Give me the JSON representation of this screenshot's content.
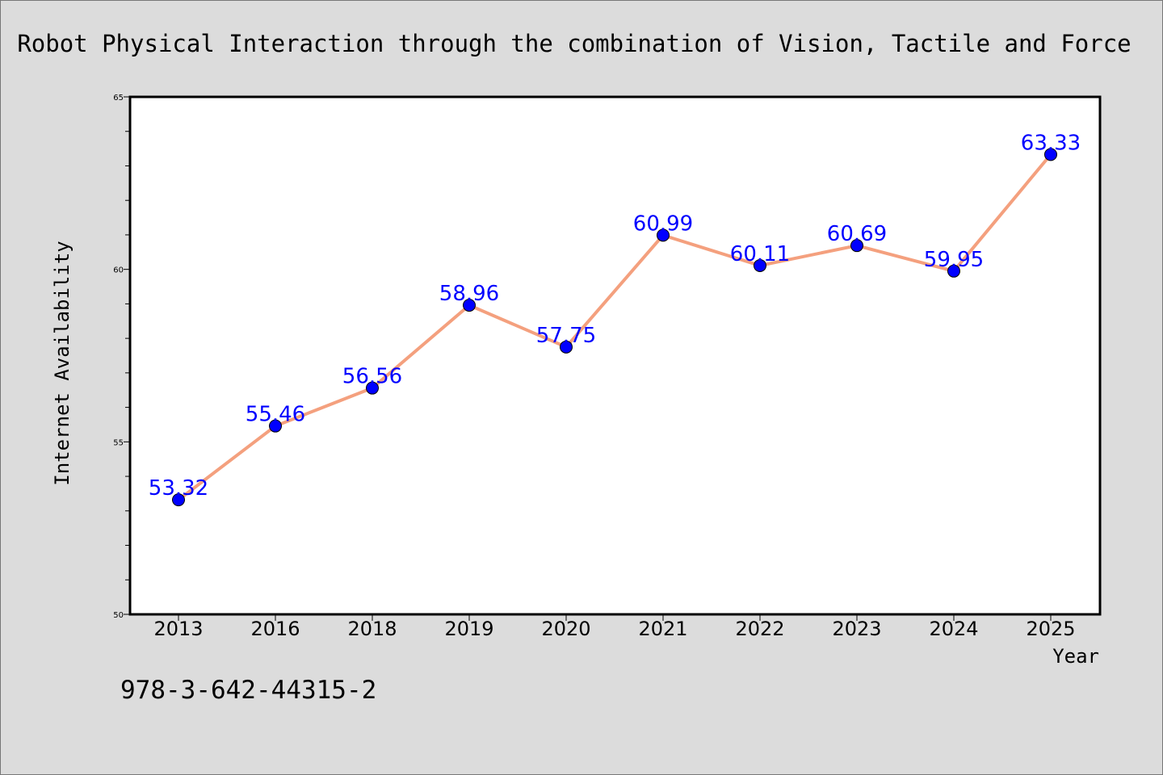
{
  "chart_data": {
    "type": "line",
    "title": "Robot Physical Interaction through the combination of Vision, Tactile and Force",
    "xlabel": "Year",
    "ylabel": "Internet Availability",
    "categories": [
      "2013",
      "2016",
      "2018",
      "2019",
      "2020",
      "2021",
      "2022",
      "2023",
      "2024",
      "2025"
    ],
    "series": [
      {
        "values": [
          53.32,
          55.46,
          56.56,
          58.96,
          57.75,
          60.99,
          60.11,
          60.69,
          59.95,
          63.33
        ],
        "data_labels": [
          "53.32",
          "55.46",
          "56.56",
          "58.96",
          "57.75",
          "60.99",
          "60.11",
          "60.69",
          "59.95",
          "63.33"
        ]
      }
    ],
    "ylim": [
      50,
      65
    ],
    "yticks": [
      "50",
      "55",
      "60",
      "65"
    ],
    "grid": false,
    "legend": "none",
    "colors": {
      "line": "#f4a07e",
      "marker": "#0000ff",
      "label": "#0000ff",
      "background": "#dcdcdc",
      "plot_background": "#ffffff"
    }
  },
  "footer": {
    "isbn": "978-3-642-44315-2"
  }
}
